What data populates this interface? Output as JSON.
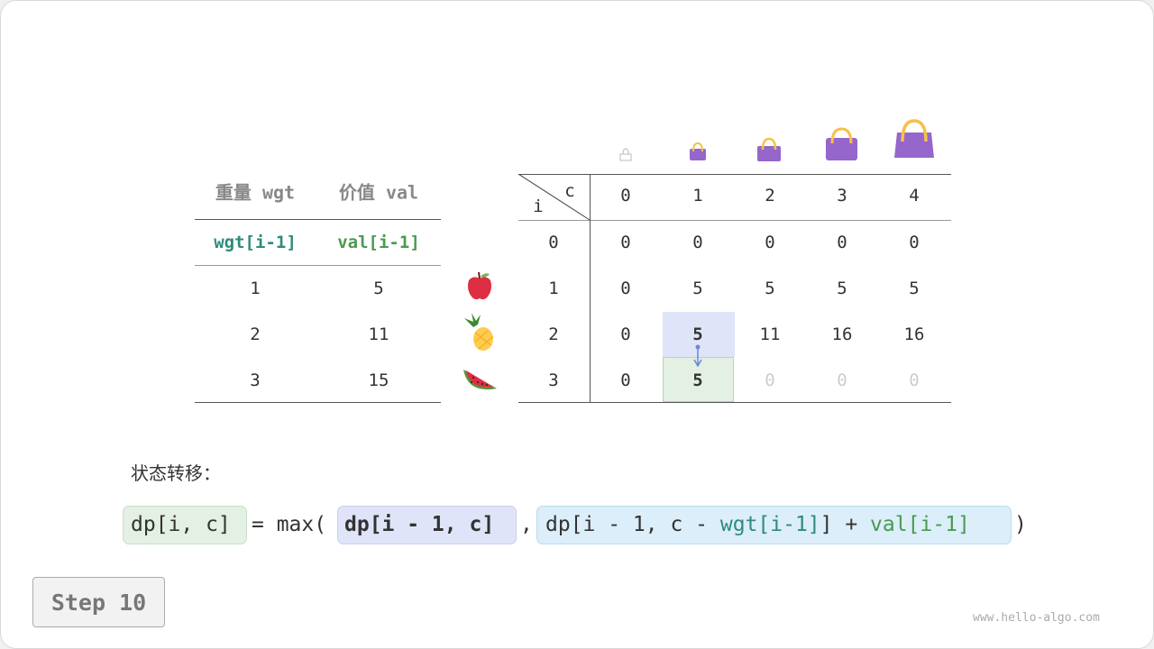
{
  "left_table": {
    "headers": [
      "重量 wgt",
      "价值 val"
    ],
    "subheaders": [
      "wgt[i-1]",
      "val[i-1]"
    ],
    "rows": [
      [
        "1",
        "5"
      ],
      [
        "2",
        "11"
      ],
      [
        "3",
        "15"
      ]
    ]
  },
  "items": [
    "apple-icon",
    "pineapple-icon",
    "watermelon-icon"
  ],
  "dp_table": {
    "corner_c": "c",
    "corner_i": "i",
    "col_headers": [
      "0",
      "1",
      "2",
      "3",
      "4"
    ],
    "row_headers": [
      "0",
      "1",
      "2",
      "3"
    ],
    "rows": [
      [
        "0",
        "0",
        "0",
        "0",
        "0"
      ],
      [
        "0",
        "5",
        "5",
        "5",
        "5"
      ],
      [
        "0",
        "5",
        "11",
        "16",
        "16"
      ],
      [
        "0",
        "5",
        "0",
        "0",
        "0"
      ]
    ],
    "bag_icons": [
      "bag-0-icon",
      "bag-1-icon",
      "bag-2-icon",
      "bag-3-icon",
      "bag-4-icon"
    ]
  },
  "colors": {
    "source_cell": "#e0e4f8",
    "target_cell": "#e3f0e3",
    "teal": "#2e8b7e",
    "green": "#4a9a50",
    "bag": "#9566cc"
  },
  "formula": {
    "label": "状态转移：",
    "lhs": "dp[i, c]",
    "eq": "= max(",
    "opt1": "dp[i - 1, c]",
    "comma": ",",
    "opt2_a": "dp[i - 1, c - ",
    "opt2_wgt": "wgt[i-1]",
    "opt2_b": "] + ",
    "opt2_val": "val[i-1]",
    "close": ")"
  },
  "step": "Step 10",
  "watermark": "www.hello-algo.com"
}
